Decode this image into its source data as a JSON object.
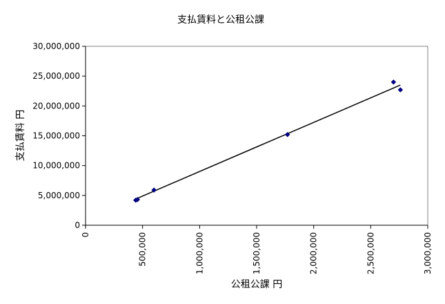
{
  "chart_data": {
    "type": "scatter",
    "title": "支払賃料と公租公課",
    "xlabel": "公租公課 円",
    "ylabel": "支払賃料 円",
    "xlim": [
      0,
      3000000
    ],
    "ylim": [
      0,
      30000000
    ],
    "x_ticks": [
      0,
      500000,
      1000000,
      1500000,
      2000000,
      2500000,
      3000000
    ],
    "x_tick_labels": [
      "0",
      "500,000",
      "1,000,000",
      "1,500,000",
      "2,000,000",
      "2,500,000",
      "3,000,000"
    ],
    "y_ticks": [
      0,
      5000000,
      10000000,
      15000000,
      20000000,
      25000000,
      30000000
    ],
    "y_tick_labels": [
      "0",
      "5,000,000",
      "10,000,000",
      "15,000,000",
      "20,000,000",
      "25,000,000",
      "30,000,000"
    ],
    "series": [
      {
        "points": [
          {
            "x": 440000,
            "y": 4200000
          },
          {
            "x": 455000,
            "y": 4300000
          },
          {
            "x": 600000,
            "y": 5900000
          },
          {
            "x": 1770000,
            "y": 15200000
          },
          {
            "x": 2700000,
            "y": 24000000
          },
          {
            "x": 2760000,
            "y": 22700000
          }
        ],
        "color": "#000080"
      }
    ],
    "trendline": {
      "type": "linear",
      "x": [
        440000,
        2760000
      ],
      "y": [
        4400000,
        23500000
      ],
      "color": "#000000"
    },
    "grid": false,
    "legend": "none"
  }
}
